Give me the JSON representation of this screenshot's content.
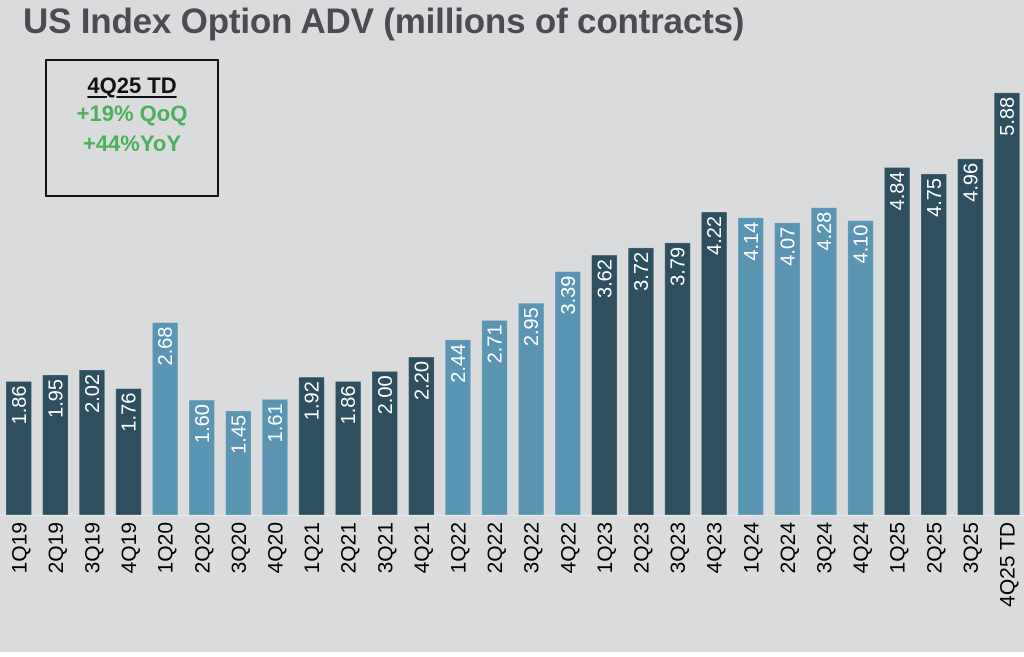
{
  "chart_data": {
    "type": "bar",
    "title": "US Index Option ADV (millions of contracts)",
    "xlabel": "",
    "ylabel": "",
    "ylim": [
      0,
      6
    ],
    "grid": false,
    "categories": [
      "1Q19",
      "2Q19",
      "3Q19",
      "4Q19",
      "1Q20",
      "2Q20",
      "3Q20",
      "4Q20",
      "1Q21",
      "2Q21",
      "3Q21",
      "4Q21",
      "1Q22",
      "2Q22",
      "3Q22",
      "4Q22",
      "1Q23",
      "2Q23",
      "3Q23",
      "4Q23",
      "1Q24",
      "2Q24",
      "3Q24",
      "4Q24",
      "1Q25",
      "2Q25",
      "3Q25",
      "4Q25 TD"
    ],
    "values": [
      1.86,
      1.95,
      2.02,
      1.76,
      2.68,
      1.6,
      1.45,
      1.61,
      1.92,
      1.86,
      2.0,
      2.2,
      2.44,
      2.71,
      2.95,
      3.39,
      3.62,
      3.72,
      3.79,
      4.22,
      4.14,
      4.07,
      4.28,
      4.1,
      4.84,
      4.75,
      4.96,
      5.88
    ],
    "value_labels": [
      "1.86",
      "1.95",
      "2.02",
      "1.76",
      "2.68",
      "1.60",
      "1.45",
      "1.61",
      "1.92",
      "1.86",
      "2.00",
      "2.20",
      "2.44",
      "2.71",
      "2.95",
      "3.39",
      "3.62",
      "3.72",
      "3.79",
      "4.22",
      "4.14",
      "4.07",
      "4.28",
      "4.10",
      "4.84",
      "4.75",
      "4.96",
      "5.88"
    ],
    "year_colors": [
      "#2d4f5f",
      "#5a95b3",
      "#2d4f5f",
      "#5a95b3",
      "#2d4f5f",
      "#5a95b3",
      "#2d4f5f"
    ],
    "annotation": {
      "heading": "4Q25 TD",
      "lines": [
        "+19% QoQ",
        "+44%YoY"
      ],
      "heading_color": "#111111",
      "lines_color": "#4caf5c"
    }
  }
}
